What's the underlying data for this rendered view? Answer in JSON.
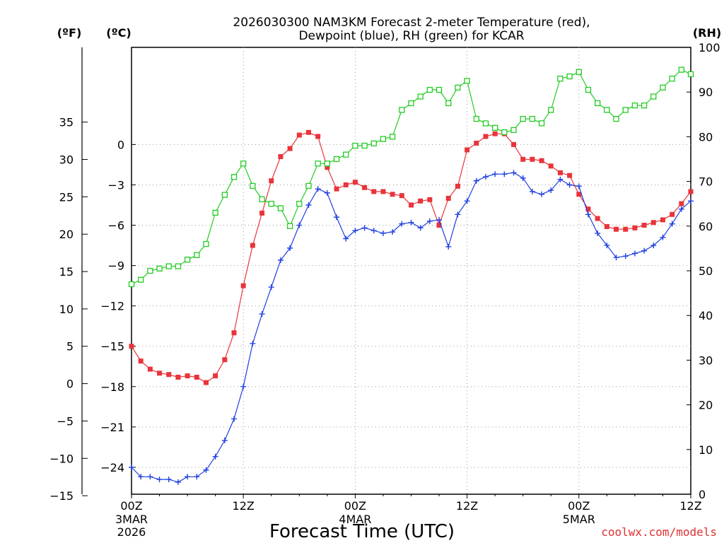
{
  "chart_data": {
    "type": "line",
    "title_line1": "2026030300 NAM3KM Forecast 2-meter Temperature (red),",
    "title_line2": "Dewpoint (blue), RH (green) for KCAR",
    "unit_f": "(ºF)",
    "unit_c": "(ºC)",
    "unit_rh": "(RH)",
    "xlabel": "Forecast Time (UTC)",
    "credit": "coolwx.com/models",
    "x_hours_range": [
      0,
      60
    ],
    "y_celsius_range": [
      -26,
      7.2222
    ],
    "y_rh_range": [
      0,
      100
    ],
    "y_f_ticks": [
      "35",
      "30",
      "25",
      "20",
      "15",
      "10",
      "5",
      "0",
      "−5",
      "−10",
      "−15"
    ],
    "y_f_values": [
      35,
      30,
      25,
      20,
      15,
      10,
      5,
      0,
      -5,
      -10,
      -15
    ],
    "y_c_ticks": [
      "0",
      "−3",
      "−6",
      "−9",
      "−12",
      "−15",
      "−18",
      "−21",
      "−24"
    ],
    "y_c_values": [
      0,
      -3,
      -6,
      -9,
      -12,
      -15,
      -18,
      -21,
      -24
    ],
    "y_rh_ticks": [
      "100",
      "90",
      "80",
      "70",
      "60",
      "50",
      "40",
      "30",
      "20",
      "10",
      "0"
    ],
    "y_rh_values": [
      100,
      90,
      80,
      70,
      60,
      50,
      40,
      30,
      20,
      10,
      0
    ],
    "x_ticks": [
      {
        "hour": 0,
        "label": "00Z",
        "sub1": "3MAR",
        "sub2": "2026"
      },
      {
        "hour": 12,
        "label": "12Z",
        "sub1": "",
        "sub2": ""
      },
      {
        "hour": 24,
        "label": "00Z",
        "sub1": "4MAR",
        "sub2": ""
      },
      {
        "hour": 36,
        "label": "12Z",
        "sub1": "",
        "sub2": ""
      },
      {
        "hour": 48,
        "label": "00Z",
        "sub1": "5MAR",
        "sub2": ""
      },
      {
        "hour": 60,
        "label": "12Z",
        "sub1": "",
        "sub2": ""
      }
    ],
    "series": [
      {
        "name": "Temperature",
        "axis": "celsius",
        "color": "#e8343a",
        "marker": "filled-square",
        "values": [
          -15.0,
          -16.1,
          -16.7,
          -17.0,
          -17.1,
          -17.3,
          -17.2,
          -17.3,
          -17.7,
          -17.2,
          -16.0,
          -14.0,
          -10.5,
          -7.5,
          -5.1,
          -2.7,
          -0.9,
          -0.3,
          0.7,
          0.9,
          0.6,
          -1.7,
          -3.3,
          -3.0,
          -2.8,
          -3.2,
          -3.5,
          -3.5,
          -3.7,
          -3.8,
          -4.5,
          -4.2,
          -4.1,
          -6.0,
          -4.0,
          -3.1,
          -0.4,
          0.1,
          0.6,
          0.8,
          0.8,
          0.0,
          -1.1,
          -1.1,
          -1.2,
          -1.6,
          -2.1,
          -2.3,
          -3.7,
          -4.8,
          -5.5,
          -6.1,
          -6.3,
          -6.3,
          -6.2,
          -6.0,
          -5.8,
          -5.6,
          -5.2,
          -4.4,
          -3.5
        ]
      },
      {
        "name": "Dewpoint",
        "axis": "celsius",
        "color": "#2040e0",
        "marker": "plus",
        "values": [
          -24.0,
          -24.7,
          -24.7,
          -24.9,
          -24.9,
          -25.1,
          -24.7,
          -24.7,
          -24.2,
          -23.2,
          -22.0,
          -20.4,
          -18.0,
          -14.8,
          -12.6,
          -10.6,
          -8.6,
          -7.7,
          -6.0,
          -4.5,
          -3.3,
          -3.6,
          -5.4,
          -7.0,
          -6.4,
          -6.2,
          -6.4,
          -6.6,
          -6.5,
          -5.9,
          -5.8,
          -6.2,
          -5.7,
          -5.6,
          -7.6,
          -5.2,
          -4.2,
          -2.7,
          -2.4,
          -2.2,
          -2.2,
          -2.1,
          -2.5,
          -3.5,
          -3.7,
          -3.4,
          -2.6,
          -3.0,
          -3.1,
          -5.2,
          -6.6,
          -7.5,
          -8.4,
          -8.3,
          -8.1,
          -7.9,
          -7.5,
          -6.9,
          -5.9,
          -4.8,
          -4.2
        ]
      },
      {
        "name": "RH",
        "axis": "rh",
        "color": "#22cc22",
        "marker": "open-square",
        "values": [
          47.0,
          48.0,
          50.0,
          50.5,
          51.0,
          51.0,
          52.5,
          53.5,
          56.0,
          63.0,
          67.0,
          71.0,
          74.0,
          69.0,
          66.0,
          65.0,
          64.0,
          60.0,
          65.0,
          69.0,
          74.0,
          74.0,
          75.0,
          76.0,
          78.0,
          78.0,
          78.5,
          79.5,
          80.0,
          86.0,
          87.5,
          89.0,
          90.5,
          90.5,
          87.5,
          91.0,
          92.5,
          84.0,
          83.0,
          82.0,
          81.0,
          81.5,
          84.0,
          84.0,
          83.0,
          86.0,
          93.0,
          93.5,
          94.5,
          90.5,
          87.5,
          86.0,
          84.0,
          86.0,
          87.0,
          87.0,
          89.0,
          91.0,
          93.0,
          95.0,
          94.0
        ]
      }
    ]
  }
}
